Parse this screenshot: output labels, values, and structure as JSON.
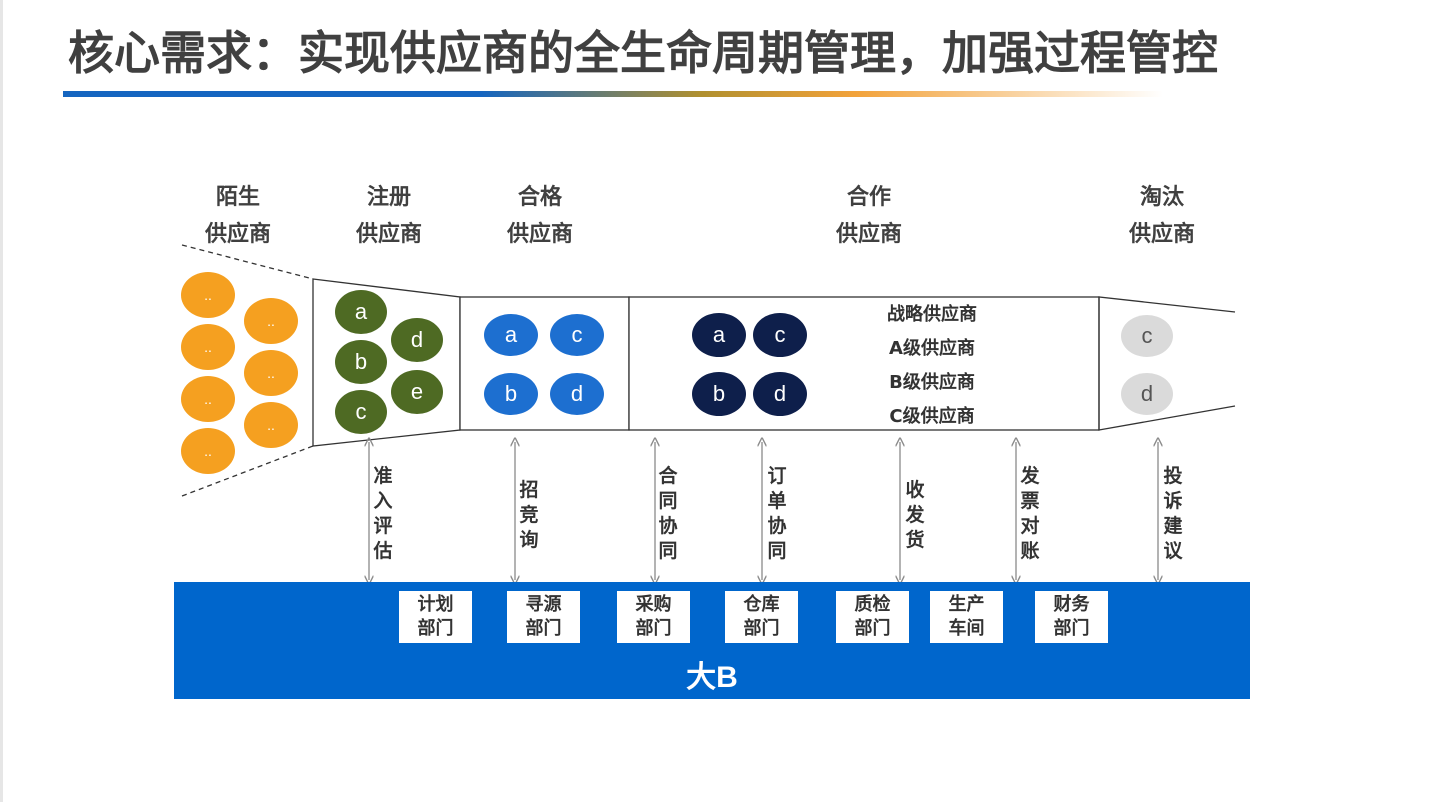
{
  "title": "核心需求：实现供应商的全生命周期管理，加强过程管控",
  "stages": [
    {
      "line1": "陌生",
      "line2": "供应商"
    },
    {
      "line1": "注册",
      "line2": "供应商"
    },
    {
      "line1": "合格",
      "line2": "供应商"
    },
    {
      "line1": "合作",
      "line2": "供应商"
    },
    {
      "line1": "淘汰",
      "line2": "供应商"
    }
  ],
  "stranger_circles": [
    "..",
    "..",
    "..",
    "..",
    "..",
    "..",
    "..",
    ".."
  ],
  "registered_circles": [
    "a",
    "d",
    "b",
    "e",
    "c"
  ],
  "qualified_circles": [
    "a",
    "c",
    "b",
    "d"
  ],
  "cooperative_circles": [
    "a",
    "c",
    "b",
    "d"
  ],
  "cooperative_tiers": [
    "战略供应商",
    "A级供应商",
    "B级供应商",
    "C级供应商"
  ],
  "eliminated_circles": [
    "c",
    "d"
  ],
  "processes": [
    "准入评估",
    "招竞询",
    "合同协同",
    "订单协同",
    "收发货",
    "发票对账",
    "投诉建议"
  ],
  "departments": [
    {
      "line1": "计划",
      "line2": "部门"
    },
    {
      "line1": "寻源",
      "line2": "部门"
    },
    {
      "line1": "采购",
      "line2": "部门"
    },
    {
      "line1": "仓库",
      "line2": "部门"
    },
    {
      "line1": "质检",
      "line2": "部门"
    },
    {
      "line1": "生产",
      "line2": "车间"
    },
    {
      "line1": "财务",
      "line2": "部门"
    }
  ],
  "base_label": "大B",
  "colors": {
    "stranger": "#f5a020",
    "registered": "#4e6a23",
    "qualified": "#1d6fd0",
    "cooperative": "#0e1f4b",
    "eliminated": "#dadada",
    "base": "#0066cc",
    "title_underline_start": "#1565c0",
    "title_underline_end": "#f2a23a"
  }
}
